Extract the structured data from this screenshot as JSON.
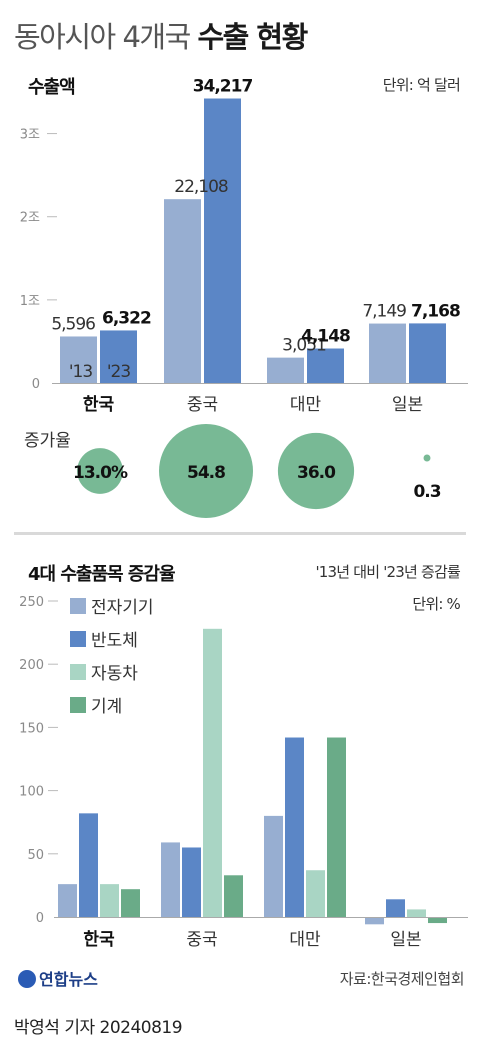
{
  "header": {
    "title_prefix": "동아시아 4개국",
    "title_bold": "수출 현황"
  },
  "footer": {
    "logo_text": "연합뉴스",
    "source": "자료:한국경제인협회",
    "credit": "박영석 기자  20240819"
  },
  "colors": {
    "light_blue": "#97aed1",
    "blue": "#5b86c6",
    "mint": "#a9d5c4",
    "green": "#6aab88",
    "circle": "#78b995"
  },
  "chart_data": [
    {
      "type": "bar",
      "title": "수출액",
      "unit_label": "단위: 억 달러",
      "categories": [
        "한국",
        "중국",
        "대만",
        "일본"
      ],
      "highlight_category": "한국",
      "ylim": [
        0,
        35000
      ],
      "yticks": [
        {
          "label": "0",
          "value": 0
        },
        {
          "label": "1조",
          "value": 10000
        },
        {
          "label": "2조",
          "value": 20000
        },
        {
          "label": "3조",
          "value": 30000
        }
      ],
      "series": [
        {
          "name": "'13",
          "color": "#97aed1",
          "values": [
            5596,
            22108,
            3051,
            7149
          ],
          "labels": [
            "5,596",
            "22,108",
            "3,051",
            "7,149"
          ]
        },
        {
          "name": "'23",
          "color": "#5b86c6",
          "values": [
            6322,
            34217,
            4148,
            7168
          ],
          "labels": [
            "6,322",
            "34,217",
            "4,148",
            "7,168"
          ]
        }
      ],
      "increase_rate": {
        "label": "증가율",
        "values": [
          13.0,
          54.8,
          36.0,
          0.3
        ],
        "labels": [
          "13.0%",
          "54.8",
          "36.0",
          "0.3"
        ]
      }
    },
    {
      "type": "bar",
      "title": "4대 수출품목 증감율",
      "subtitle": "'13년 대비 '23년 증감률",
      "unit_label": "단위: %",
      "categories": [
        "한국",
        "중국",
        "대만",
        "일본"
      ],
      "highlight_category": "한국",
      "ylim": [
        -10,
        250
      ],
      "yticks": [
        0,
        50,
        100,
        150,
        200,
        250
      ],
      "legend_position": "top-left",
      "series": [
        {
          "name": "전자기기",
          "color": "#97aed1",
          "values": [
            26,
            59,
            80,
            -5
          ]
        },
        {
          "name": "반도체",
          "color": "#5b86c6",
          "values": [
            82,
            55,
            142,
            14
          ]
        },
        {
          "name": "자동차",
          "color": "#a9d5c4",
          "values": [
            26,
            228,
            37,
            6
          ]
        },
        {
          "name": "기계",
          "color": "#6aab88",
          "values": [
            22,
            33,
            142,
            -4
          ]
        }
      ]
    }
  ]
}
